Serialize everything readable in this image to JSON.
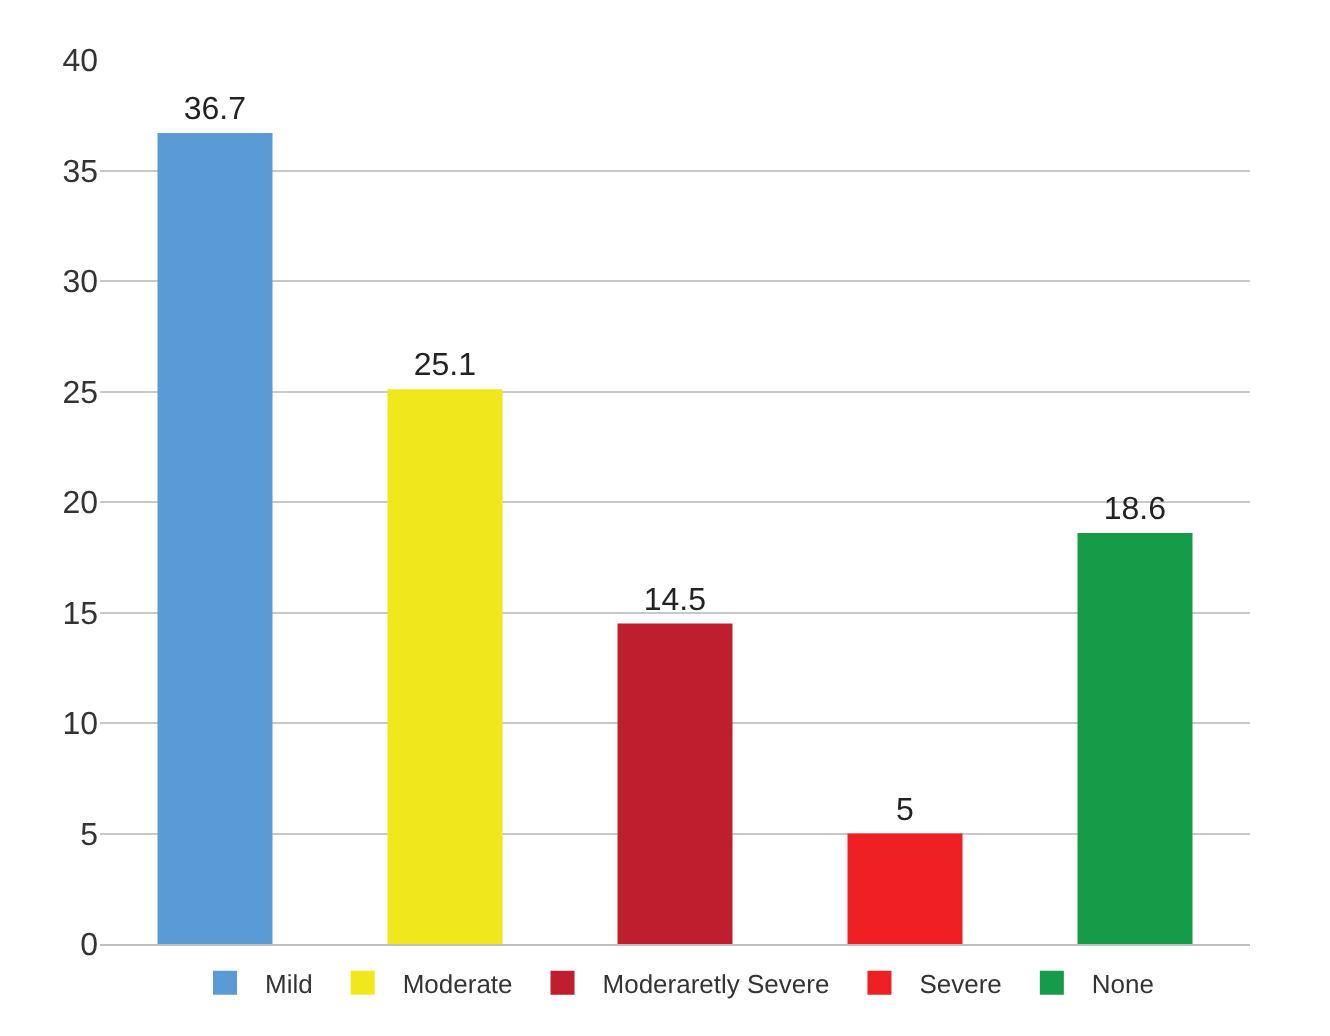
{
  "chart_data": {
    "type": "bar",
    "categories": [
      null,
      null,
      null,
      null,
      null
    ],
    "series": [
      {
        "name": "Mild",
        "color": "#5b9bd5",
        "values": [
          36.7,
          null,
          null,
          null,
          null
        ]
      },
      {
        "name": "Moderate",
        "color": "#f0e81a",
        "values": [
          null,
          25.1,
          null,
          null,
          null
        ]
      },
      {
        "name": "Moderaretly Severe",
        "color": "#be1e2d",
        "values": [
          null,
          null,
          14.5,
          null,
          null
        ]
      },
      {
        "name": "Severe",
        "color": "#ee2024",
        "values": [
          null,
          null,
          null,
          5,
          null
        ]
      },
      {
        "name": "None",
        "color": "#169b48",
        "values": [
          null,
          null,
          null,
          null,
          18.6
        ]
      }
    ],
    "ylim": [
      0,
      40
    ],
    "yticks": [
      0,
      5,
      10,
      15,
      20,
      25,
      30,
      35,
      40
    ],
    "grid": "y",
    "legend": "bottom",
    "tick_labels": "y",
    "data_labels": true
  }
}
